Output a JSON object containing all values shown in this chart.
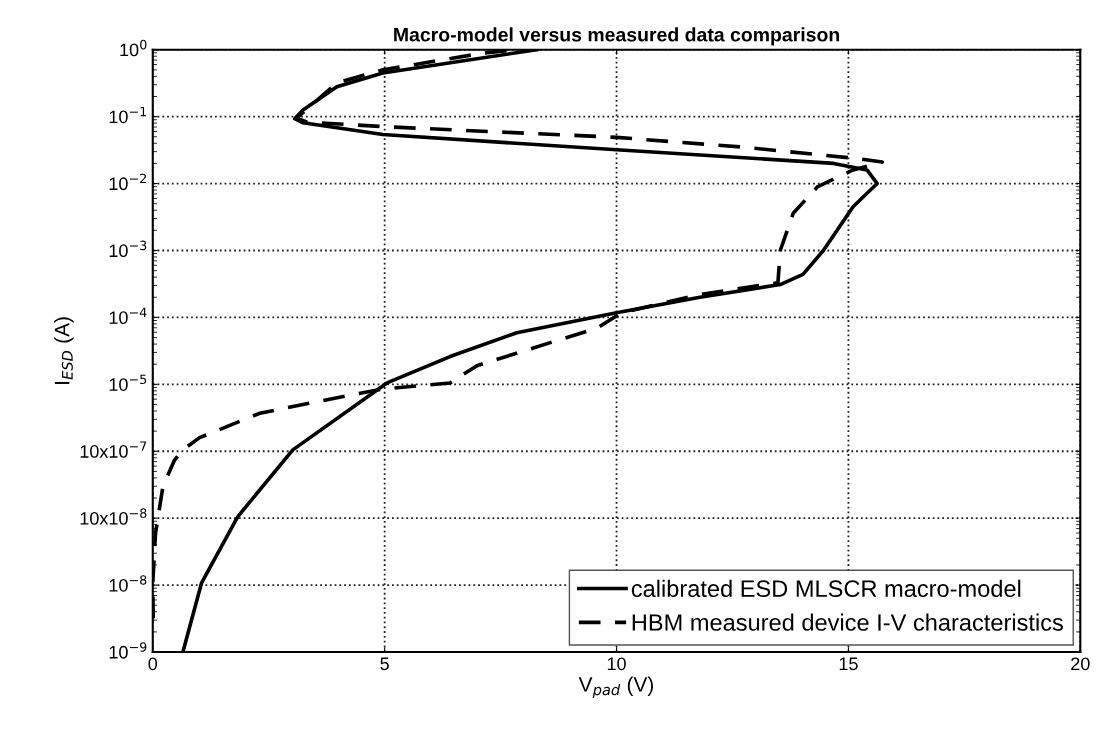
{
  "chart_data": {
    "type": "line",
    "title": "Macro-model versus measured data comparison",
    "xlabel": "V$_{pad}$ (V)",
    "ylabel": "I$_{ESD}$ (A)",
    "log": "y",
    "grid": true,
    "legend": "bottom right",
    "xlim": [
      0,
      20
    ],
    "xticks": [
      0,
      5,
      10,
      15,
      20
    ],
    "ylim": [
      1e-09,
      1
    ],
    "yticks": [
      {
        "value": 1e-09,
        "label": "10$^{−9}$"
      },
      {
        "value": 1e-08,
        "label": "10$^{−8}$"
      },
      {
        "value": 1e-07,
        "label": "10x10$^{−8}$"
      },
      {
        "value": 1e-06,
        "label": "10x10$^{−7}$"
      },
      {
        "value": 1e-05,
        "label": "10$^{−5}$"
      },
      {
        "value": 0.0001,
        "label": "10$^{−4}$"
      },
      {
        "value": 0.001,
        "label": "10$^{−3}$"
      },
      {
        "value": 0.01,
        "label": "10$^{−2}$"
      },
      {
        "value": 0.1,
        "label": "10$^{−1}$"
      },
      {
        "value": 1,
        "label": "10$^{0}$"
      }
    ],
    "series": [
      {
        "name": "calibrated ESD MLSCR macro-model",
        "color": "#000000",
        "line_style": "solid",
        "x": [
          0.65,
          1.05,
          1.83,
          3.02,
          5.05,
          6.41,
          7.85,
          10.0,
          11.8,
          13.53,
          14.02,
          14.46,
          15.1,
          15.62,
          15.4,
          14.68,
          10.0,
          4.96,
          3.24,
          3.06,
          3.24,
          3.97,
          4.96,
          8.28
        ],
        "values": [
          1e-09,
          1.07e-08,
          1.05e-07,
          1.05e-06,
          1.05e-05,
          2.6e-05,
          5.9e-05,
          0.000117,
          0.0002,
          0.00031,
          0.00044,
          0.001,
          0.0045,
          0.01,
          0.016,
          0.02,
          0.032,
          0.054,
          0.081,
          0.093,
          0.126,
          0.28,
          0.45,
          1.0
        ]
      },
      {
        "name": "HBM measured device I-V characteristics",
        "color": "#000000",
        "line_style": "dashed",
        "x": [
          0.01,
          0.0,
          0.06,
          0.22,
          0.47,
          0.65,
          1.01,
          2.31,
          4.25,
          4.96,
          6.41,
          6.99,
          8.57,
          9.58,
          10.1,
          11.8,
          13.48,
          13.53,
          13.81,
          14.33,
          15.1,
          15.73,
          15.1,
          12.73,
          10.0,
          4.96,
          3.32,
          3.1,
          3.97,
          4.96,
          7.12,
          7.85
        ],
        "values": [
          3.2e-09,
          1.07e-08,
          6e-08,
          3e-07,
          7.4e-07,
          1.05e-06,
          1.6e-06,
          3.7e-06,
          6.9e-06,
          8.5e-06,
          1.05e-05,
          1.9e-05,
          4.2e-05,
          6.9e-05,
          0.000117,
          0.00022,
          0.00033,
          0.001,
          0.0036,
          0.0089,
          0.016,
          0.021,
          0.024,
          0.035,
          0.049,
          0.071,
          0.083,
          0.095,
          0.32,
          0.5,
          0.89,
          1.0
        ]
      }
    ]
  }
}
